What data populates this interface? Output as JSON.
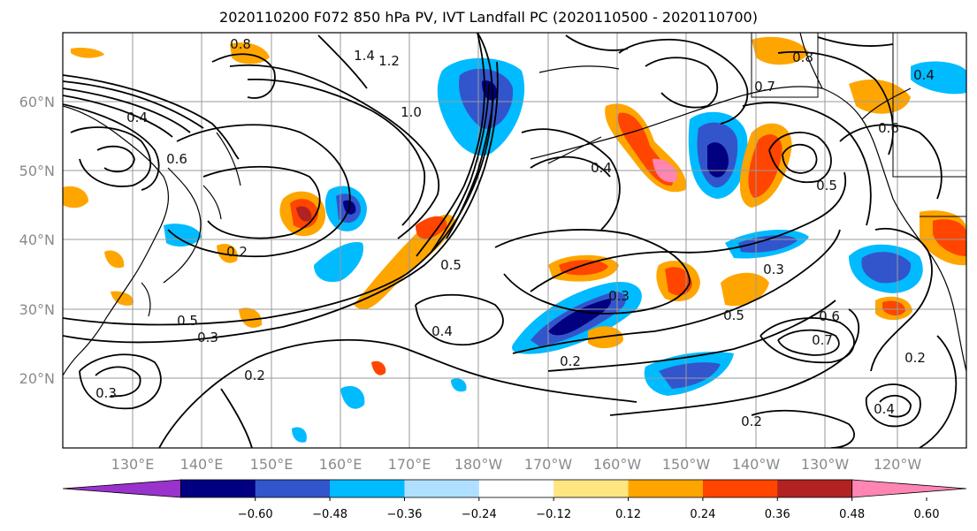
{
  "title": "2020110200 F072 850 hPa PV, IVT Landfall PC (2020110500 - 2020110700)",
  "lat_labels": [
    "60°N",
    "50°N",
    "40°N",
    "30°N",
    "20°N"
  ],
  "lon_labels": [
    "130°E",
    "140°E",
    "150°E",
    "160°E",
    "170°E",
    "180°W",
    "170°W",
    "160°W",
    "150°W",
    "140°W",
    "130°W",
    "120°W"
  ],
  "colorbar": {
    "ticks": [
      "−0.60",
      "−0.48",
      "−0.36",
      "−0.24",
      "−0.12",
      "0.12",
      "0.24",
      "0.36",
      "0.48",
      "0.60"
    ],
    "colors": [
      "#9933cc",
      "#000080",
      "#3355cc",
      "#00bbff",
      "#b0e0ff",
      "#ffffff",
      "#ffe680",
      "#ffa500",
      "#ff4500",
      "#b22222",
      "#ff85b3"
    ]
  },
  "contour_labels": [
    "0.8",
    "1.4",
    "1.2",
    "1.0",
    "0.4",
    "0.6",
    "0.2",
    "0.5",
    "0.3",
    "0.6",
    "0.5",
    "0.8",
    "0.7",
    "0.4",
    "0.3",
    "0.5",
    "0.6",
    "0.7",
    "0.2",
    "0.2",
    "0.4",
    "0.3",
    "0.5",
    "0.2",
    "0.2",
    "0.4",
    "0.4",
    "0.3"
  ]
}
